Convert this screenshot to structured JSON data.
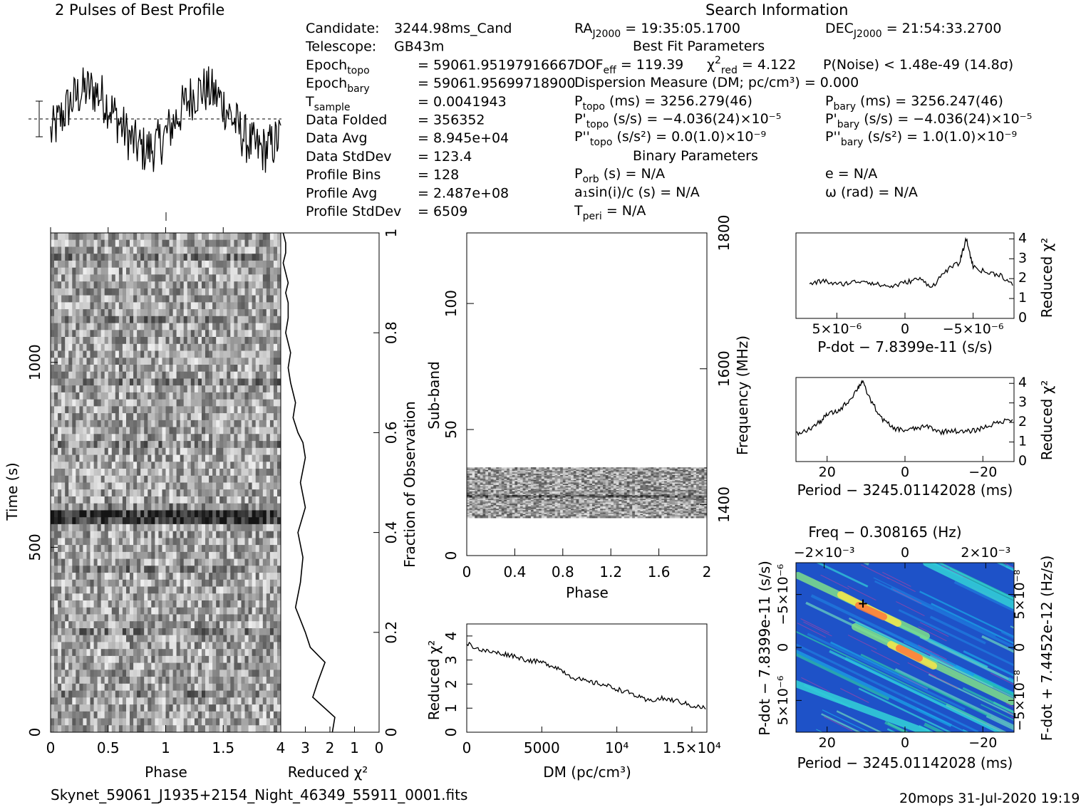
{
  "header": {
    "profile_title": "2 Pulses of Best Profile",
    "search_title": "Search Information",
    "filename": "Skynet_59061_J1935+2154_Night_46349_55911_0001.fits",
    "footer_right": "20mops 31-Jul-2020 19:19"
  },
  "info_left": [
    {
      "label": "Candidate:",
      "value": "3244.98ms_Cand"
    },
    {
      "label": "Telescope:",
      "value": "GB43m"
    },
    {
      "label": "Epoch",
      "sub": "topo",
      "value": "= 59061.95197916667"
    },
    {
      "label": "Epoch",
      "sub": "bary",
      "value": "= 59061.95699718900"
    },
    {
      "label": "T",
      "sub": "sample",
      "value": "0.0041943"
    },
    {
      "label": "Data Folded",
      "value": "356352"
    },
    {
      "label": "Data Avg",
      "value": "8.945e+04"
    },
    {
      "label": "Data StdDev",
      "value": "123.4"
    },
    {
      "label": "Profile Bins",
      "value": "128"
    },
    {
      "label": "Profile Avg",
      "value": "2.487e+08"
    },
    {
      "label": "Profile StdDev",
      "value": "6509"
    }
  ],
  "info_search": {
    "ra": "= 19:35:05.1700",
    "dec": "= 21:54:33.2700",
    "best_fit_title": "Best Fit Parameters",
    "dof": "= 119.39",
    "chi2": "= 4.122",
    "pnoise": "P(Noise) < 1.48e-49  (14.8σ)",
    "dm": "Dispersion Measure (DM; pc/cm³) = 0.000",
    "ptopo": "(ms) =  3256.279(46)",
    "pbary": "(ms) =  3256.247(46)",
    "pdtopo": "(s/s) = −4.036(24)×10⁻⁵",
    "pdbary": "(s/s) = −4.036(24)×10⁻⁵",
    "pddtopo": "(s/s²) = 0.0(1.0)×10⁻⁹",
    "pddbary": "(s/s²) =  1.0(1.0)×10⁻⁹",
    "binary_title": "Binary Parameters",
    "porb": "(s) = N/A",
    "ecc": "e = N/A",
    "a1": "a₁sin(i)/c (s) = N/A",
    "omega": "ω (rad) = N/A",
    "tperi": "= N/A"
  },
  "axes": {
    "phase_label": "Phase",
    "time_label": "Time (s)",
    "redchi_label": "Reduced χ²",
    "frac_label": "Fraction of Observation",
    "subband_label": "Sub-band",
    "freq_label": "Frequency (MHz)",
    "dm_label": "DM (pc/cm³)",
    "pdot_label": "P-dot − 7.8399e-11 (s/s)",
    "period_label": "Period − 3245.01142028 (ms)",
    "freq_top_label": "Freq − 0.308165 (Hz)",
    "fdot_label": "F-dot + 7.4452e-12 (Hz/s)",
    "time_ticks": [
      "0",
      "500",
      "1000"
    ],
    "phase_ticks": [
      "0",
      "0.5",
      "1",
      "1.5"
    ],
    "redchi_ticks": [
      "4",
      "3",
      "2",
      "1",
      "0"
    ],
    "frac_ticks": [
      "0",
      "0.2",
      "0.4",
      "0.6",
      "0.8",
      "1"
    ],
    "subband_ticks": [
      "0",
      "50",
      "100"
    ],
    "freq_ticks": [
      "1400",
      "1600",
      "1800"
    ],
    "phase2_ticks": [
      "0",
      "0.4",
      "0.8",
      "1.2",
      "1.6",
      "2"
    ],
    "dm_ticks": [
      "0",
      "5000",
      "10⁴",
      "1.5×10⁴"
    ],
    "dm_y_ticks": [
      "0",
      "1",
      "2",
      "3",
      "4"
    ],
    "small_y_ticks": [
      "0",
      "1",
      "2",
      "3",
      "4"
    ],
    "pdot_x_ticks": [
      "5×10⁻⁶",
      "0",
      "−5×10⁻⁶"
    ],
    "period_ticks": [
      "20",
      "0",
      "−20"
    ],
    "freq_top_ticks": [
      "−2×10⁻³",
      "0",
      "2×10⁻³"
    ],
    "pp_y_ticks": [
      "−5×10⁻⁶",
      "0",
      "5×10⁻⁶"
    ],
    "fdot_ticks": [
      "5×10⁻⁸",
      "0",
      "−5×10⁻⁸"
    ]
  },
  "chart_data": [
    {
      "type": "line",
      "title": "2 Pulses of Best Profile",
      "xlabel": "",
      "ylabel": "",
      "description_values": {
        "phase_range": [
          0,
          2
        ],
        "bins_per_pulse": 128
      }
    },
    {
      "type": "heatmap",
      "xlabel": "Phase",
      "ylabel": "Time (s)",
      "xlim": [
        0,
        2
      ],
      "ylim": [
        0,
        1350
      ]
    },
    {
      "type": "line",
      "xlabel": "Reduced χ²",
      "ylabel": "Fraction of Observation",
      "xlim": [
        4,
        0
      ],
      "ylim": [
        0,
        1
      ],
      "x": [
        1.9,
        1.8,
        2.7,
        2.5,
        2.2,
        2.8,
        3.0,
        3.4,
        3.2,
        3.1,
        3.3,
        3.0,
        3.2,
        3.0,
        3.1,
        3.3,
        3.5,
        3.4,
        3.6,
        3.7,
        3.6,
        3.8,
        3.7,
        3.7,
        3.8,
        3.7,
        3.8,
        3.9,
        3.8,
        3.8,
        3.9
      ],
      "y": [
        0,
        0.03,
        0.07,
        0.1,
        0.14,
        0.17,
        0.2,
        0.25,
        0.3,
        0.35,
        0.4,
        0.45,
        0.5,
        0.55,
        0.58,
        0.6,
        0.63,
        0.66,
        0.7,
        0.73,
        0.76,
        0.8,
        0.83,
        0.86,
        0.88,
        0.9,
        0.92,
        0.94,
        0.96,
        0.98,
        1.0
      ]
    },
    {
      "type": "heatmap",
      "xlabel": "Phase",
      "ylabel": "Sub-band",
      "xlim": [
        0,
        2
      ],
      "ylim": [
        0,
        128
      ],
      "occupied_subbands": [
        15,
        35
      ]
    },
    {
      "type": "line",
      "xlabel": "DM (pc/cm³)",
      "ylabel": "Reduced χ²",
      "xlim": [
        0,
        16000
      ],
      "ylim": [
        0,
        4.5
      ],
      "x": [
        0,
        1000,
        2000,
        3000,
        4000,
        5000,
        6000,
        7000,
        8000,
        9000,
        10000,
        11000,
        12000,
        13000,
        14000,
        15000,
        16000
      ],
      "y": [
        3.7,
        3.4,
        3.3,
        3.2,
        3.0,
        2.9,
        2.7,
        2.3,
        2.1,
        2.0,
        1.8,
        1.6,
        1.3,
        1.4,
        1.3,
        1.1,
        1.0
      ]
    },
    {
      "type": "line",
      "xlabel": "P-dot − 7.8399e-11 (s/s)",
      "ylabel": "Reduced χ²",
      "ylim": [
        0,
        4.3
      ],
      "x": [
        7e-06,
        6e-06,
        5e-06,
        4e-06,
        3e-06,
        2e-06,
        1e-06,
        0,
        -1e-06,
        -2e-06,
        -3e-06,
        -4e-06,
        -4.5e-06,
        -5e-06,
        -6e-06,
        -7e-06,
        -8e-06
      ],
      "y": [
        1.7,
        1.9,
        1.7,
        1.8,
        1.9,
        1.7,
        1.6,
        1.8,
        2.0,
        1.6,
        2.4,
        2.8,
        4.0,
        2.6,
        2.3,
        2.2,
        1.6
      ]
    },
    {
      "type": "line",
      "xlabel": "Period − 3245.01142028 (ms)",
      "ylabel": "Reduced χ²",
      "ylim": [
        0,
        4.3
      ],
      "x": [
        28,
        25,
        22,
        20,
        17,
        14,
        12,
        11,
        9,
        6,
        3,
        0,
        -3,
        -6,
        -9,
        -12,
        -15,
        -18,
        -21,
        -24,
        -28
      ],
      "y": [
        1.4,
        1.6,
        2.0,
        2.4,
        2.6,
        3.2,
        3.8,
        4.1,
        3.2,
        2.2,
        1.7,
        1.6,
        1.7,
        1.8,
        1.5,
        1.6,
        1.5,
        1.6,
        1.8,
        2.0,
        2.2
      ]
    },
    {
      "type": "heatmap",
      "xlabel": "Period − 3245.01142028 (ms)",
      "ylabel": "P-dot − 7.8399e-11 (s/s)",
      "xlim": [
        28,
        -28
      ],
      "best_point": {
        "period": 11,
        "pdot": -4.5e-06
      }
    }
  ]
}
